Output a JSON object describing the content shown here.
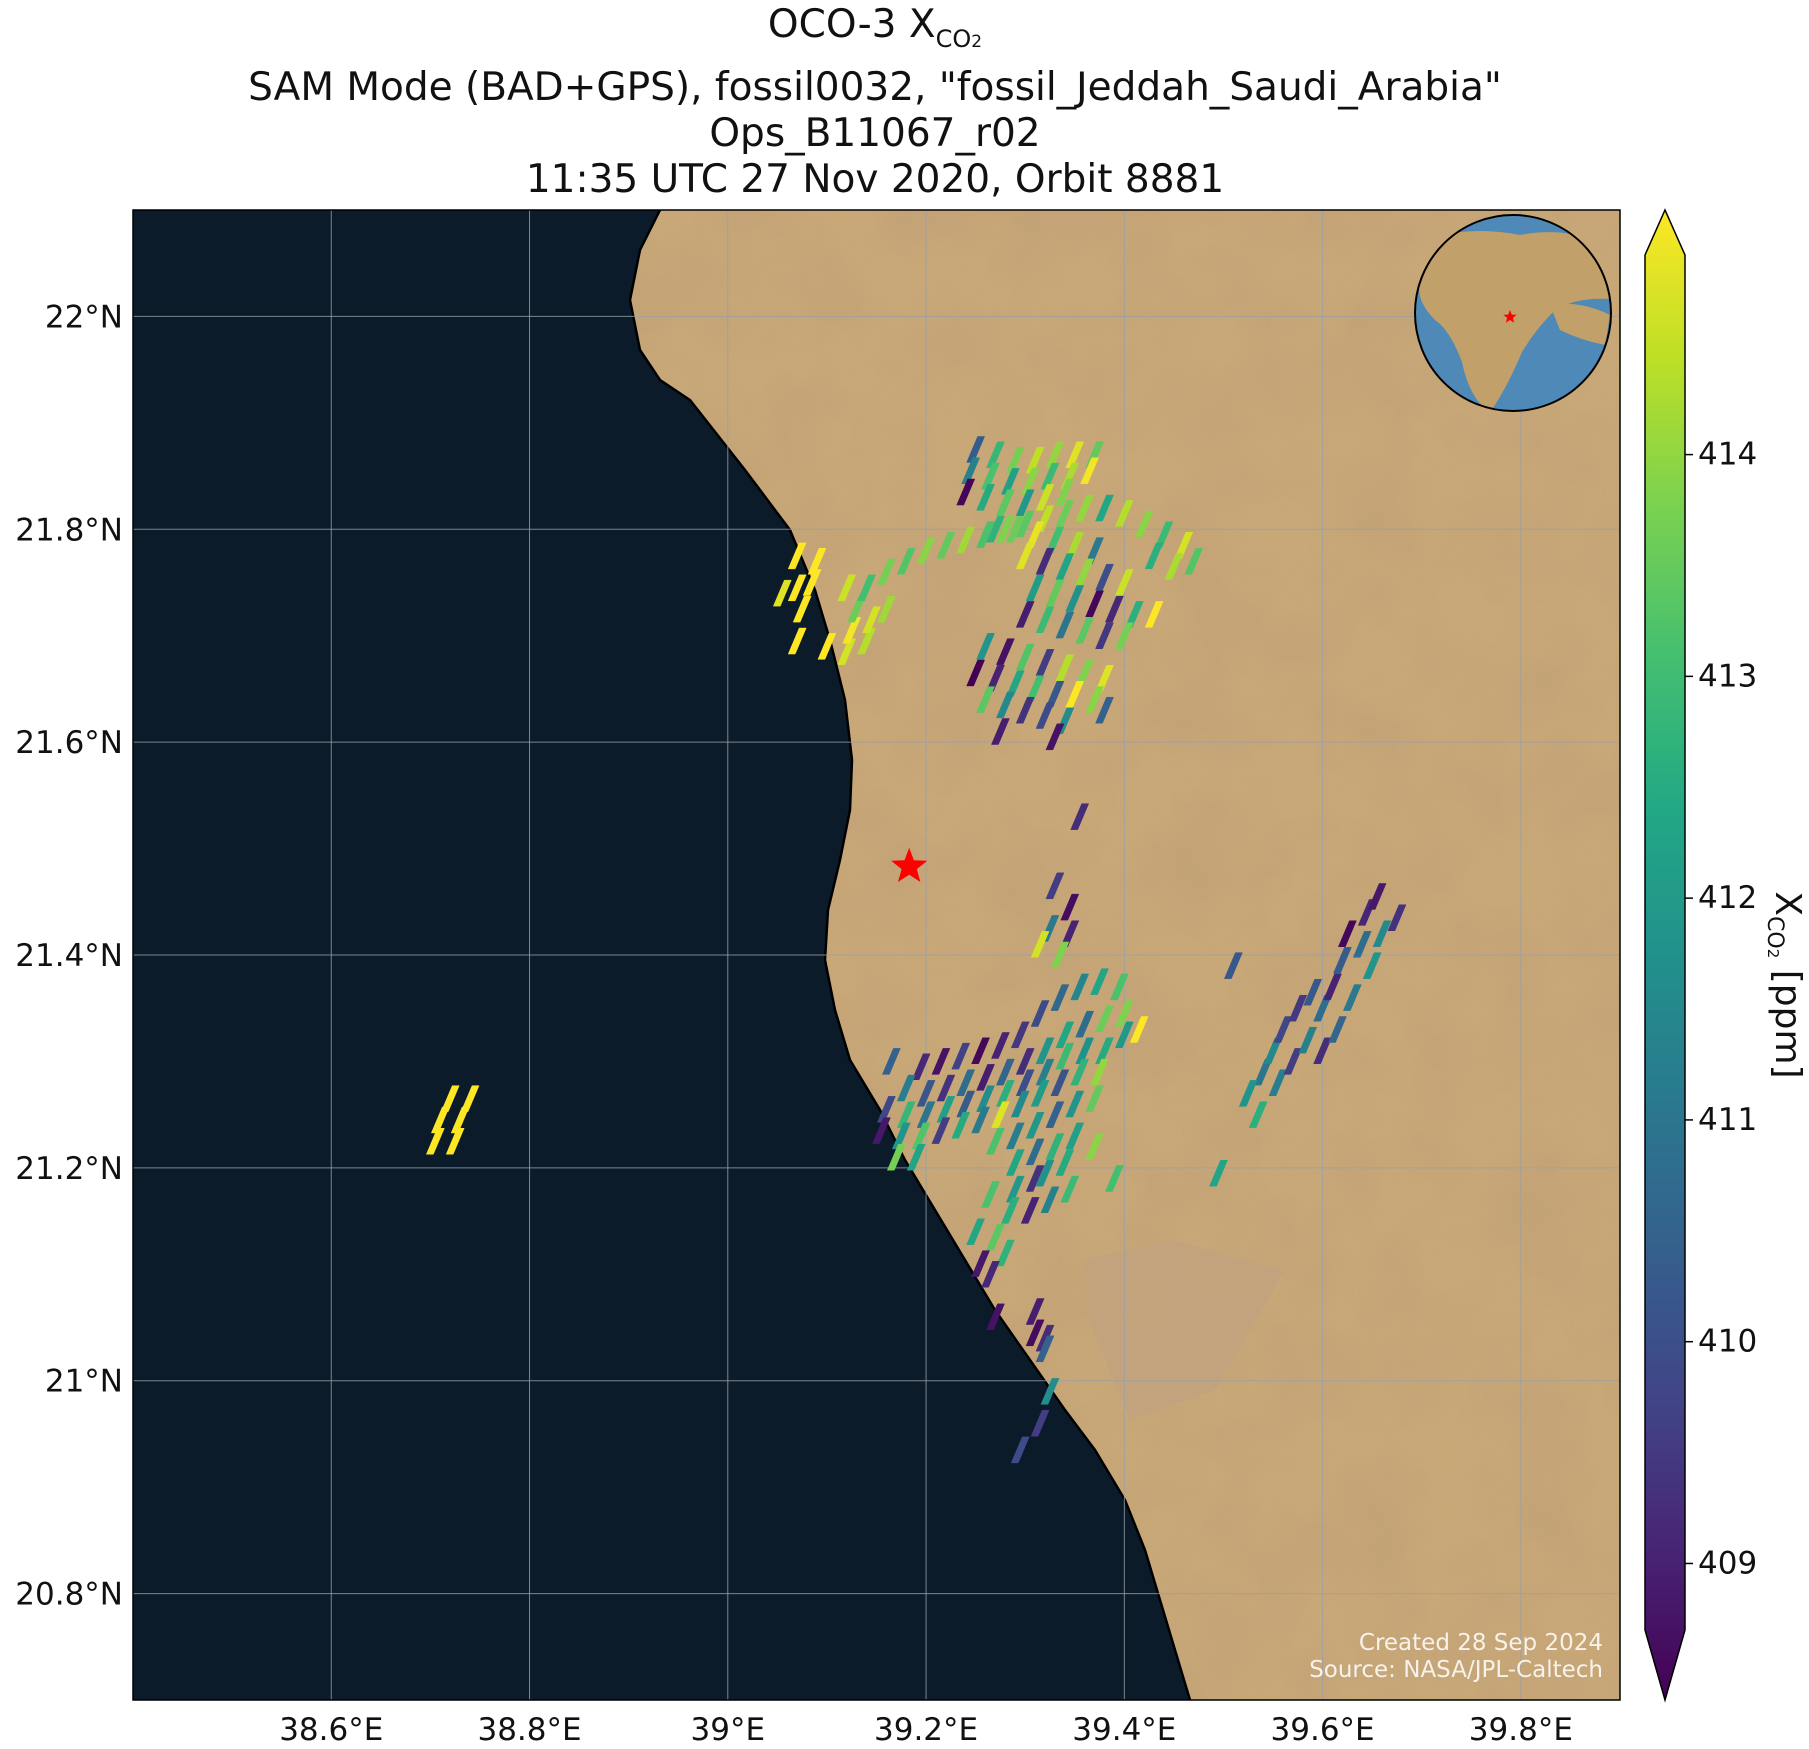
{
  "title": {
    "line1_main": "OCO-3 X",
    "line1_sub": "CO",
    "line1_sub2": "2",
    "line2": "SAM Mode (BAD+GPS), fossil0032, \"fossil_Jeddah_Saudi_Arabia\"",
    "line3": "Ops_B11067_r02",
    "line4": "11:35 UTC 27 Nov 2020, Orbit 8881"
  },
  "map": {
    "lon_range": [
      38.4,
      39.9
    ],
    "lat_range": [
      20.7,
      22.1
    ],
    "lon_ticks": [
      {
        "value": 38.6,
        "label": "38.6°E"
      },
      {
        "value": 38.8,
        "label": "38.8°E"
      },
      {
        "value": 39.0,
        "label": "39°E"
      },
      {
        "value": 39.2,
        "label": "39.2°E"
      },
      {
        "value": 39.4,
        "label": "39.4°E"
      },
      {
        "value": 39.6,
        "label": "39.6°E"
      },
      {
        "value": 39.8,
        "label": "39.8°E"
      }
    ],
    "lat_ticks": [
      {
        "value": 22.0,
        "label": "22°N"
      },
      {
        "value": 21.8,
        "label": "21.8°N"
      },
      {
        "value": 21.6,
        "label": "21.6°N"
      },
      {
        "value": 21.4,
        "label": "21.4°N"
      },
      {
        "value": 21.2,
        "label": "21.2°N"
      },
      {
        "value": 21.0,
        "label": "21°N"
      },
      {
        "value": 20.8,
        "label": "20.8°N"
      }
    ],
    "grid": true,
    "sea_color": "#0c1b2a",
    "land_color": "#c9a878",
    "target_star": {
      "lon": 39.183,
      "lat": 21.483,
      "color": "#ff0000"
    },
    "inset_globe": {
      "position": "top-right",
      "ocean_color": "#4f89b8",
      "land_color": "#c2a06a",
      "star_color": "#ff0000"
    },
    "credits_line1": "Created 28 Sep 2024",
    "credits_line2": "Source: NASA/JPL-Caltech"
  },
  "colorbar": {
    "label_main": "X",
    "label_sub": "CO",
    "label_sub2": "2",
    "label_unit": " [ppm]",
    "range": [
      408.7,
      414.9
    ],
    "extend": "both",
    "colormap": "viridis",
    "ticks": [
      {
        "value": 409,
        "label": "409"
      },
      {
        "value": 410,
        "label": "410"
      },
      {
        "value": 411,
        "label": "411"
      },
      {
        "value": 412,
        "label": "412"
      },
      {
        "value": 413,
        "label": "413"
      },
      {
        "value": 414,
        "label": "414"
      }
    ]
  },
  "chart_data": {
    "type": "scatter",
    "title": "OCO-3 XCO2 — SAM Mode (BAD+GPS), fossil0032, \"fossil_Jeddah_Saudi_Arabia\"",
    "xlabel": "",
    "ylabel": "",
    "xlim": [
      38.4,
      39.9
    ],
    "ylim": [
      20.7,
      22.1
    ],
    "value_label": "XCO2 [ppm]",
    "soundings": [
      [
        38.72,
        21.265,
        414.9
      ],
      [
        38.74,
        21.265,
        414.9
      ],
      [
        38.71,
        21.245,
        414.9
      ],
      [
        38.73,
        21.245,
        414.9
      ],
      [
        38.705,
        21.225,
        414.9
      ],
      [
        38.725,
        21.225,
        414.9
      ],
      [
        39.07,
        21.775,
        414.9
      ],
      [
        39.09,
        21.77,
        414.9
      ],
      [
        39.085,
        21.75,
        414.9
      ],
      [
        39.07,
        21.745,
        414.9
      ],
      [
        39.055,
        21.74,
        414.6
      ],
      [
        39.075,
        21.725,
        414.9
      ],
      [
        39.07,
        21.695,
        414.9
      ],
      [
        39.1,
        21.69,
        414.9
      ],
      [
        39.12,
        21.685,
        414.5
      ],
      [
        39.14,
        21.695,
        414.2
      ],
      [
        39.125,
        21.705,
        414.8
      ],
      [
        39.145,
        21.715,
        414.5
      ],
      [
        39.16,
        21.725,
        414.0
      ],
      [
        39.13,
        21.725,
        413.5
      ],
      [
        39.12,
        21.745,
        414.4
      ],
      [
        39.14,
        21.745,
        413.0
      ],
      [
        39.16,
        21.76,
        413.6
      ],
      [
        39.18,
        21.77,
        413.2
      ],
      [
        39.2,
        21.78,
        413.8
      ],
      [
        39.22,
        21.785,
        413.4
      ],
      [
        39.24,
        21.79,
        414.0
      ],
      [
        39.26,
        21.795,
        413.1
      ],
      [
        39.28,
        21.8,
        413.7
      ],
      [
        39.3,
        21.805,
        413.3
      ],
      [
        39.32,
        21.81,
        414.3
      ],
      [
        39.34,
        21.815,
        413.5
      ],
      [
        39.36,
        21.82,
        413.9
      ],
      [
        39.38,
        21.82,
        412.4
      ],
      [
        39.4,
        21.815,
        414.2
      ],
      [
        39.42,
        21.805,
        413.8
      ],
      [
        39.44,
        21.795,
        412.9
      ],
      [
        39.46,
        21.785,
        414.5
      ],
      [
        39.47,
        21.77,
        413.2
      ],
      [
        39.45,
        21.765,
        414.1
      ],
      [
        39.43,
        21.775,
        412.6
      ],
      [
        39.25,
        21.875,
        410.5
      ],
      [
        39.27,
        21.87,
        412.8
      ],
      [
        39.29,
        21.865,
        413.6
      ],
      [
        39.31,
        21.865,
        414.3
      ],
      [
        39.33,
        21.87,
        413.9
      ],
      [
        39.35,
        21.87,
        414.6
      ],
      [
        39.37,
        21.87,
        413.4
      ],
      [
        39.245,
        21.855,
        411.4
      ],
      [
        39.265,
        21.85,
        413.1
      ],
      [
        39.285,
        21.845,
        412.2
      ],
      [
        39.305,
        21.845,
        413.8
      ],
      [
        39.325,
        21.85,
        412.9
      ],
      [
        39.345,
        21.85,
        414.1
      ],
      [
        39.365,
        21.855,
        414.8
      ],
      [
        39.24,
        21.835,
        408.8
      ],
      [
        39.26,
        21.83,
        412.5
      ],
      [
        39.28,
        21.825,
        413.3
      ],
      [
        39.3,
        21.825,
        412.0
      ],
      [
        39.32,
        21.83,
        414.4
      ],
      [
        39.34,
        21.835,
        413.7
      ],
      [
        39.27,
        21.8,
        412.7
      ],
      [
        39.29,
        21.8,
        413.5
      ],
      [
        39.31,
        21.795,
        414.7
      ],
      [
        39.33,
        21.79,
        413.0
      ],
      [
        39.35,
        21.785,
        414.1
      ],
      [
        39.37,
        21.78,
        411.2
      ],
      [
        39.3,
        21.775,
        414.6
      ],
      [
        39.32,
        21.77,
        409.5
      ],
      [
        39.34,
        21.765,
        412.3
      ],
      [
        39.36,
        21.76,
        413.9
      ],
      [
        39.38,
        21.755,
        410.2
      ],
      [
        39.4,
        21.75,
        414.4
      ],
      [
        39.31,
        21.745,
        412.1
      ],
      [
        39.33,
        21.74,
        413.4
      ],
      [
        39.35,
        21.735,
        411.8
      ],
      [
        39.37,
        21.73,
        408.8
      ],
      [
        39.39,
        21.725,
        409.4
      ],
      [
        39.41,
        21.72,
        412.6
      ],
      [
        39.43,
        21.72,
        414.9
      ],
      [
        39.3,
        21.72,
        409.2
      ],
      [
        39.32,
        21.715,
        412.9
      ],
      [
        39.34,
        21.71,
        411.1
      ],
      [
        39.36,
        21.705,
        413.3
      ],
      [
        39.38,
        21.7,
        409.7
      ],
      [
        39.4,
        21.7,
        413.6
      ],
      [
        39.26,
        21.69,
        411.9
      ],
      [
        39.28,
        21.685,
        409.0
      ],
      [
        39.3,
        21.68,
        413.2
      ],
      [
        39.32,
        21.675,
        409.8
      ],
      [
        39.34,
        21.67,
        414.2
      ],
      [
        39.36,
        21.665,
        413.7
      ],
      [
        39.38,
        21.66,
        414.6
      ],
      [
        39.25,
        21.665,
        408.7
      ],
      [
        39.27,
        21.66,
        409.3
      ],
      [
        39.29,
        21.655,
        412.4
      ],
      [
        39.31,
        21.65,
        413.0
      ],
      [
        39.33,
        21.645,
        410.4
      ],
      [
        39.35,
        21.645,
        414.9
      ],
      [
        39.37,
        21.64,
        413.8
      ],
      [
        39.26,
        21.64,
        413.3
      ],
      [
        39.28,
        21.635,
        411.6
      ],
      [
        39.3,
        21.63,
        409.6
      ],
      [
        39.32,
        21.625,
        410.1
      ],
      [
        39.34,
        21.62,
        411.7
      ],
      [
        39.275,
        21.61,
        409.2
      ],
      [
        39.33,
        21.605,
        409.0
      ],
      [
        39.38,
        21.63,
        410.6
      ],
      [
        39.355,
        21.53,
        409.5
      ],
      [
        39.33,
        21.465,
        409.8
      ],
      [
        39.345,
        21.445,
        408.9
      ],
      [
        39.325,
        21.425,
        411.2
      ],
      [
        39.345,
        21.42,
        409.3
      ],
      [
        39.315,
        21.41,
        414.5
      ],
      [
        39.335,
        21.4,
        413.7
      ],
      [
        39.165,
        21.3,
        410.6
      ],
      [
        39.195,
        21.295,
        409.4
      ],
      [
        39.215,
        21.3,
        409.0
      ],
      [
        39.235,
        21.305,
        409.9
      ],
      [
        39.255,
        21.31,
        408.8
      ],
      [
        39.275,
        21.315,
        409.3
      ],
      [
        39.295,
        21.325,
        409.7
      ],
      [
        39.315,
        21.345,
        410.1
      ],
      [
        39.335,
        21.36,
        410.8
      ],
      [
        39.355,
        21.37,
        411.5
      ],
      [
        39.375,
        21.375,
        412.3
      ],
      [
        39.395,
        21.37,
        413.1
      ],
      [
        39.415,
        21.33,
        414.9
      ],
      [
        39.4,
        21.345,
        413.7
      ],
      [
        39.18,
        21.275,
        411.3
      ],
      [
        39.2,
        21.27,
        410.4
      ],
      [
        39.22,
        21.275,
        409.6
      ],
      [
        39.24,
        21.28,
        410.9
      ],
      [
        39.26,
        21.285,
        409.2
      ],
      [
        39.28,
        21.29,
        410.7
      ],
      [
        39.3,
        21.3,
        409.5
      ],
      [
        39.32,
        21.31,
        411.9
      ],
      [
        39.34,
        21.325,
        412.4
      ],
      [
        39.36,
        21.335,
        410.9
      ],
      [
        39.38,
        21.34,
        413.5
      ],
      [
        39.4,
        21.325,
        412.0
      ],
      [
        39.16,
        21.255,
        410.0
      ],
      [
        39.18,
        21.25,
        412.8
      ],
      [
        39.2,
        21.25,
        411.1
      ],
      [
        39.22,
        21.255,
        412.2
      ],
      [
        39.24,
        21.26,
        410.5
      ],
      [
        39.26,
        21.265,
        411.7
      ],
      [
        39.28,
        21.27,
        412.6
      ],
      [
        39.3,
        21.28,
        410.2
      ],
      [
        39.32,
        21.29,
        411.4
      ],
      [
        39.34,
        21.305,
        412.9
      ],
      [
        39.36,
        21.31,
        411.8
      ],
      [
        39.38,
        21.31,
        412.5
      ],
      [
        39.155,
        21.235,
        409.1
      ],
      [
        39.175,
        21.23,
        411.9
      ],
      [
        39.195,
        21.23,
        413.2
      ],
      [
        39.215,
        21.235,
        409.8
      ],
      [
        39.235,
        21.24,
        412.5
      ],
      [
        39.255,
        21.245,
        411.2
      ],
      [
        39.275,
        21.25,
        414.6
      ],
      [
        39.295,
        21.26,
        411.6
      ],
      [
        39.315,
        21.27,
        412.1
      ],
      [
        39.335,
        21.28,
        410.3
      ],
      [
        39.355,
        21.29,
        412.7
      ],
      [
        39.375,
        21.29,
        413.9
      ],
      [
        39.17,
        21.21,
        413.6
      ],
      [
        39.19,
        21.21,
        412.3
      ],
      [
        39.27,
        21.225,
        413.1
      ],
      [
        39.29,
        21.23,
        411.3
      ],
      [
        39.31,
        21.24,
        412.0
      ],
      [
        39.33,
        21.25,
        410.6
      ],
      [
        39.35,
        21.26,
        411.9
      ],
      [
        39.37,
        21.265,
        413.4
      ],
      [
        39.29,
        21.205,
        412.4
      ],
      [
        39.31,
        21.215,
        410.9
      ],
      [
        39.33,
        21.22,
        412.7
      ],
      [
        39.35,
        21.23,
        412.2
      ],
      [
        39.37,
        21.22,
        413.8
      ],
      [
        39.29,
        21.18,
        412.0
      ],
      [
        39.31,
        21.19,
        409.6
      ],
      [
        39.265,
        21.175,
        413.1
      ],
      [
        39.285,
        21.16,
        412.6
      ],
      [
        39.305,
        21.16,
        409.3
      ],
      [
        39.325,
        21.17,
        411.4
      ],
      [
        39.34,
        21.205,
        412.5
      ],
      [
        39.32,
        21.195,
        411.8
      ],
      [
        39.345,
        21.18,
        412.9
      ],
      [
        39.39,
        21.19,
        413.0
      ],
      [
        39.25,
        21.14,
        412.4
      ],
      [
        39.27,
        21.135,
        413.3
      ],
      [
        39.28,
        21.12,
        412.7
      ],
      [
        39.255,
        21.11,
        409.1
      ],
      [
        39.265,
        21.1,
        409.4
      ],
      [
        39.27,
        21.06,
        409.0
      ],
      [
        39.31,
        21.065,
        409.2
      ],
      [
        39.31,
        21.045,
        408.9
      ],
      [
        39.32,
        21.04,
        409.5
      ],
      [
        39.32,
        21.03,
        410.6
      ],
      [
        39.325,
        20.99,
        411.7
      ],
      [
        39.315,
        20.96,
        409.8
      ],
      [
        39.295,
        20.935,
        410.1
      ],
      [
        39.51,
        21.39,
        410.4
      ],
      [
        39.495,
        21.195,
        412.3
      ],
      [
        39.54,
        21.29,
        411.1
      ],
      [
        39.55,
        21.31,
        411.6
      ],
      [
        39.56,
        21.33,
        410.0
      ],
      [
        39.575,
        21.35,
        409.7
      ],
      [
        39.59,
        21.365,
        410.4
      ],
      [
        39.6,
        21.35,
        410.9
      ],
      [
        39.61,
        21.37,
        409.3
      ],
      [
        39.62,
        21.395,
        410.5
      ],
      [
        39.625,
        21.42,
        408.8
      ],
      [
        39.645,
        21.44,
        409.4
      ],
      [
        39.655,
        21.455,
        409.1
      ],
      [
        39.66,
        21.42,
        411.6
      ],
      [
        39.64,
        21.41,
        410.9
      ],
      [
        39.675,
        21.435,
        409.6
      ],
      [
        39.525,
        21.27,
        411.9
      ],
      [
        39.535,
        21.25,
        412.6
      ],
      [
        39.555,
        21.28,
        411.3
      ],
      [
        39.57,
        21.3,
        409.8
      ],
      [
        39.585,
        21.32,
        411.4
      ],
      [
        39.6,
        21.31,
        409.5
      ],
      [
        39.615,
        21.33,
        410.7
      ],
      [
        39.63,
        21.36,
        411.2
      ],
      [
        39.65,
        21.39,
        411.9
      ]
    ]
  }
}
